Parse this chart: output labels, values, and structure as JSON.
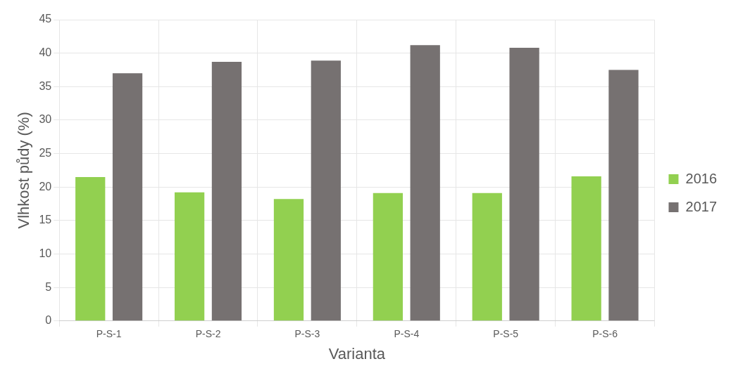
{
  "chart_data": {
    "type": "bar",
    "xlabel": "Varianta",
    "ylabel": "Vlhkost půdy (%)",
    "categories": [
      "P-S-1",
      "P-S-2",
      "P-S-3",
      "P-S-4",
      "P-S-5",
      "P-S-6"
    ],
    "series": [
      {
        "name": "2016",
        "color": "#92d050",
        "values": [
          21.5,
          19.2,
          18.2,
          19.1,
          19.1,
          21.6
        ]
      },
      {
        "name": "2017",
        "color": "#767171",
        "values": [
          37.0,
          38.7,
          38.9,
          41.2,
          40.8,
          37.5
        ]
      }
    ],
    "ylim": [
      0,
      45
    ],
    "yticks": [
      0,
      5,
      10,
      15,
      20,
      25,
      30,
      35,
      40,
      45
    ],
    "grid": true,
    "legend": "right"
  }
}
